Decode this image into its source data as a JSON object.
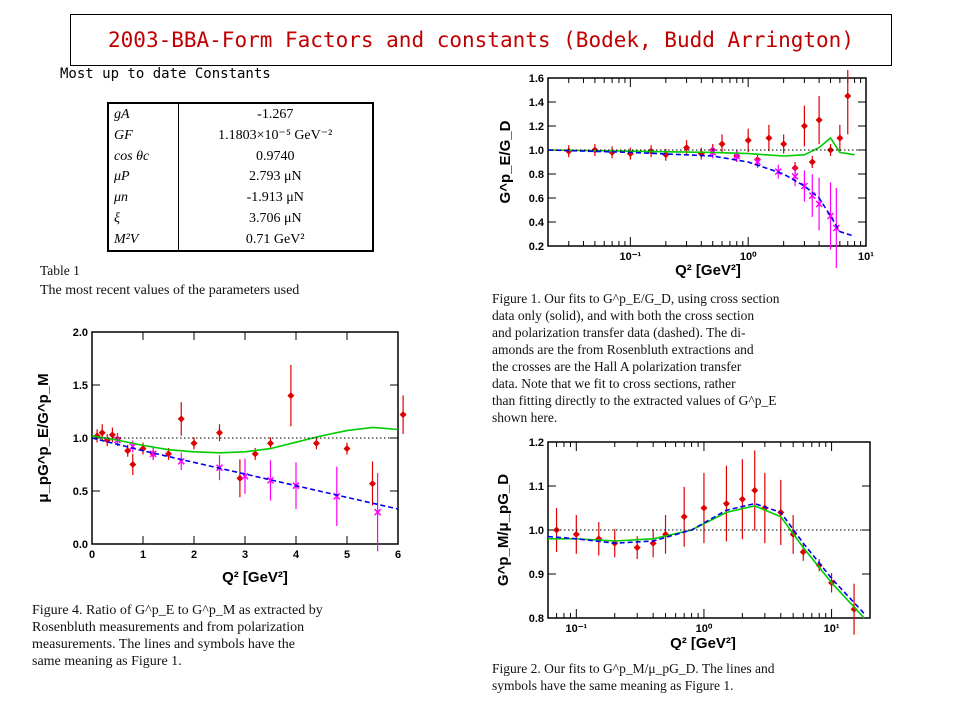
{
  "slide": {
    "title": "2003-BBA-Form Factors and constants (Bodek, Budd Arrington)",
    "subtitle": "Most up to date Constants"
  },
  "table": {
    "rows": [
      {
        "symbol": "gA",
        "value": "-1.267"
      },
      {
        "symbol": "GF",
        "value": "1.1803×10⁻⁵ GeV⁻²"
      },
      {
        "symbol": "cos θc",
        "value": "0.9740"
      },
      {
        "symbol": "μP",
        "value": "2.793 μN"
      },
      {
        "symbol": "μn",
        "value": "-1.913 μN"
      },
      {
        "symbol": "ξ",
        "value": "3.706 μN"
      },
      {
        "symbol": "M²V",
        "value": "0.71 GeV²"
      }
    ],
    "caption_label": "Table 1",
    "caption_text": "The most recent values of the parameters used"
  },
  "figures": {
    "fig1_caption": [
      "Figure 1. Our fits to G^p_E/G_D, using cross section",
      "data only (solid), and with both the cross section",
      "and polarization transfer data (dashed). The di-",
      "amonds are the from Rosenbluth extractions and",
      "the crosses are the Hall A polarization transfer",
      "data. Note that we fit to cross sections, rather",
      "than fitting directly to the extracted values of G^p_E",
      "shown here."
    ],
    "fig2_caption": [
      "Figure 2. Our fits to G^p_M/μ_pG_D. The lines and",
      "symbols have the same meaning as Figure 1."
    ],
    "fig4_caption": [
      "Figure 4. Ratio of G^p_E to G^p_M as extracted by",
      "Rosenbluth measurements and from polarization",
      "measurements. The lines and symbols have the",
      "same meaning as Figure 1."
    ]
  },
  "chart_data": [
    {
      "type": "scatter",
      "id": "fig1",
      "xlabel": "Q² [GeV²]",
      "ylabel": "G^p_E/G_D",
      "xscale": "log",
      "xlim": [
        0.02,
        10
      ],
      "ylim": [
        0.2,
        1.6
      ],
      "xticks": [
        "10⁻¹",
        "10⁰",
        "10¹"
      ],
      "yticks": [
        "0.2",
        "0.4",
        "0.6",
        "0.8",
        "1.0",
        "1.2",
        "1.4",
        "1.6"
      ],
      "series": [
        {
          "type": "points",
          "marker": "diamond",
          "color": "#e00000",
          "x": [
            0.03,
            0.05,
            0.07,
            0.1,
            0.15,
            0.2,
            0.3,
            0.4,
            0.5,
            0.6,
            0.8,
            1.0,
            1.2,
            1.5,
            2,
            2.5,
            3,
            3.5,
            4,
            5,
            6,
            7
          ],
          "y": [
            0.99,
            1.0,
            0.98,
            0.97,
            0.99,
            0.96,
            1.02,
            0.97,
            1.0,
            1.05,
            0.95,
            1.08,
            0.92,
            1.1,
            1.05,
            0.85,
            1.2,
            0.9,
            1.25,
            1.0,
            1.1,
            1.45
          ]
        },
        {
          "type": "points",
          "marker": "cross",
          "color": "#ff00ff",
          "x": [
            0.5,
            0.8,
            1.2,
            1.8,
            2.5,
            3.0,
            3.5,
            4.0,
            5.0,
            5.6
          ],
          "y": [
            0.98,
            0.95,
            0.9,
            0.82,
            0.78,
            0.7,
            0.62,
            0.55,
            0.45,
            0.35
          ]
        },
        {
          "type": "line",
          "style": "solid",
          "color": "#00cc00",
          "x": [
            0.02,
            0.1,
            0.5,
            1,
            2,
            3,
            4,
            5,
            6,
            8
          ],
          "y": [
            1.0,
            0.99,
            0.98,
            0.97,
            0.95,
            0.96,
            1.02,
            1.1,
            0.98,
            0.96
          ]
        },
        {
          "type": "line",
          "style": "dashed",
          "color": "#0000ee",
          "x": [
            0.02,
            0.1,
            0.5,
            1,
            2,
            3,
            4,
            5,
            6,
            8
          ],
          "y": [
            1.0,
            0.98,
            0.95,
            0.9,
            0.8,
            0.7,
            0.6,
            0.45,
            0.32,
            0.28
          ]
        },
        {
          "type": "line",
          "style": "dotted",
          "color": "#000000",
          "x": [
            0.02,
            10
          ],
          "y": [
            1.0,
            1.0
          ]
        }
      ]
    },
    {
      "type": "scatter",
      "id": "fig2",
      "xlabel": "Q² [GeV²]",
      "ylabel": "G^p_M/μ_pG_D",
      "xscale": "log",
      "xlim": [
        0.06,
        20
      ],
      "ylim": [
        0.8,
        1.2
      ],
      "xticks": [
        "10⁻¹",
        "10⁰",
        "10¹"
      ],
      "yticks": [
        "0.8",
        "0.9",
        "1.0",
        "1.1",
        "1.2"
      ],
      "series": [
        {
          "type": "points",
          "marker": "diamond",
          "color": "#e00000",
          "x": [
            0.07,
            0.1,
            0.15,
            0.2,
            0.3,
            0.4,
            0.5,
            0.7,
            1.0,
            1.5,
            2,
            2.5,
            3,
            4,
            5,
            6,
            8,
            10,
            15
          ],
          "y": [
            1.0,
            0.99,
            0.98,
            0.97,
            0.96,
            0.97,
            0.99,
            1.03,
            1.05,
            1.06,
            1.07,
            1.09,
            1.05,
            1.04,
            0.99,
            0.95,
            0.92,
            0.88,
            0.82
          ]
        },
        {
          "type": "line",
          "style": "solid",
          "color": "#00cc00",
          "x": [
            0.06,
            0.1,
            0.2,
            0.4,
            0.8,
            1.5,
            2.5,
            4,
            6,
            10,
            18
          ],
          "y": [
            0.98,
            0.98,
            0.975,
            0.98,
            1.0,
            1.04,
            1.055,
            1.03,
            0.96,
            0.88,
            0.8
          ]
        },
        {
          "type": "line",
          "style": "dashed",
          "color": "#0000ee",
          "x": [
            0.06,
            0.1,
            0.2,
            0.4,
            0.8,
            1.5,
            2.5,
            4,
            6,
            10,
            18
          ],
          "y": [
            0.985,
            0.98,
            0.97,
            0.975,
            1.0,
            1.045,
            1.06,
            1.04,
            0.97,
            0.89,
            0.81
          ]
        },
        {
          "type": "line",
          "style": "dotted",
          "color": "#000000",
          "x": [
            0.06,
            20
          ],
          "y": [
            1.0,
            1.0
          ]
        }
      ]
    },
    {
      "type": "scatter",
      "id": "fig4",
      "xlabel": "Q² [GeV²]",
      "ylabel": "μ_pG^p_E/G^p_M",
      "xlim": [
        0,
        6
      ],
      "ylim": [
        0,
        2
      ],
      "xticks": [
        "0",
        "1",
        "2",
        "3",
        "4",
        "5",
        "6"
      ],
      "yticks": [
        "0.0",
        "0.5",
        "1.0",
        "1.5",
        "2.0"
      ],
      "series": [
        {
          "type": "points",
          "marker": "diamond",
          "color": "#e00000",
          "x": [
            0.1,
            0.2,
            0.3,
            0.4,
            0.5,
            0.7,
            0.8,
            1.0,
            1.2,
            1.5,
            1.75,
            2.0,
            2.5,
            2.9,
            3.2,
            3.5,
            3.9,
            4.4,
            5.0,
            5.5,
            6.1
          ],
          "y": [
            1.02,
            1.05,
            0.98,
            1.03,
            0.99,
            0.88,
            0.75,
            0.9,
            0.85,
            0.85,
            1.18,
            0.95,
            1.05,
            0.62,
            0.85,
            0.95,
            1.4,
            0.95,
            0.9,
            0.57,
            1.22
          ]
        },
        {
          "type": "points",
          "marker": "cross",
          "color": "#ff00ff",
          "x": [
            0.5,
            0.8,
            1.2,
            1.75,
            2.5,
            3.0,
            3.5,
            4.0,
            4.8,
            5.6
          ],
          "y": [
            0.98,
            0.92,
            0.85,
            0.78,
            0.72,
            0.64,
            0.6,
            0.55,
            0.45,
            0.3
          ]
        },
        {
          "type": "line",
          "style": "solid",
          "color": "#00cc00",
          "x": [
            0,
            0.5,
            1,
            1.5,
            2,
            2.5,
            3,
            3.5,
            4,
            4.5,
            5,
            5.5,
            6
          ],
          "y": [
            1.02,
            0.98,
            0.93,
            0.89,
            0.87,
            0.86,
            0.87,
            0.9,
            0.96,
            1.02,
            1.07,
            1.1,
            1.08
          ]
        },
        {
          "type": "line",
          "style": "dashed",
          "color": "#0000ee",
          "x": [
            0,
            1,
            2,
            3,
            4,
            5,
            6
          ],
          "y": [
            1.0,
            0.88,
            0.77,
            0.66,
            0.55,
            0.44,
            0.33
          ]
        },
        {
          "type": "line",
          "style": "dotted",
          "color": "#000000",
          "x": [
            0,
            6
          ],
          "y": [
            1.0,
            1.0
          ]
        }
      ]
    }
  ]
}
